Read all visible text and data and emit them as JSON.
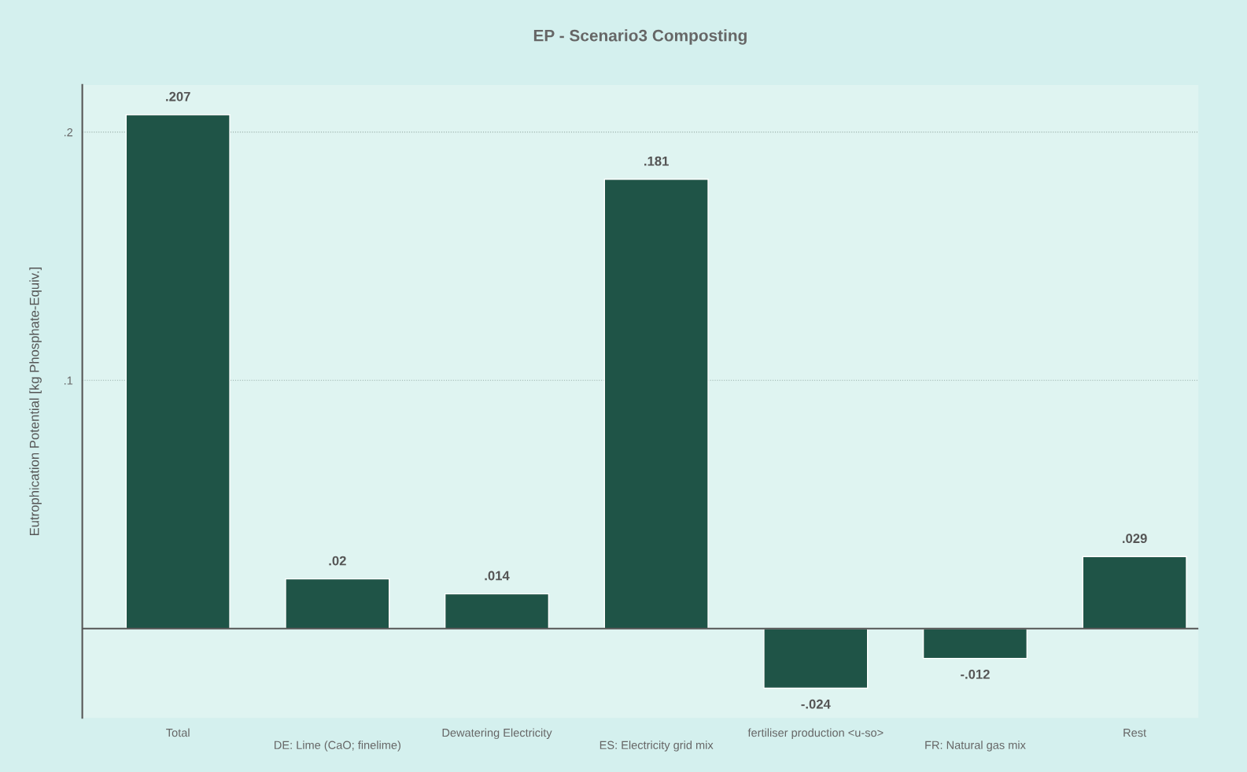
{
  "chart_data": {
    "type": "bar",
    "title": "EP - Scenario3 Composting",
    "ylabel": "Eutrophication Potential [kg Phosphate-Equiv.]",
    "categories": [
      "Total",
      "DE: Lime (CaO; finelime)",
      "Dewatering Electricity",
      "ES: Electricity grid mix",
      "fertiliser production <u-so>",
      "FR: Natural gas mix",
      "Rest"
    ],
    "values": [
      0.207,
      0.02,
      0.014,
      0.181,
      -0.024,
      -0.012,
      0.029
    ],
    "value_labels": [
      ".207",
      ".02",
      ".014",
      ".181",
      "-.024",
      "-.012",
      ".029"
    ],
    "color": "#1f5447",
    "ylim": [
      -0.036,
      0.219
    ],
    "yticks": [
      {
        "value": 0.1,
        "label": ".1"
      },
      {
        "value": 0.2,
        "label": ".2"
      }
    ],
    "grid": "y"
  }
}
